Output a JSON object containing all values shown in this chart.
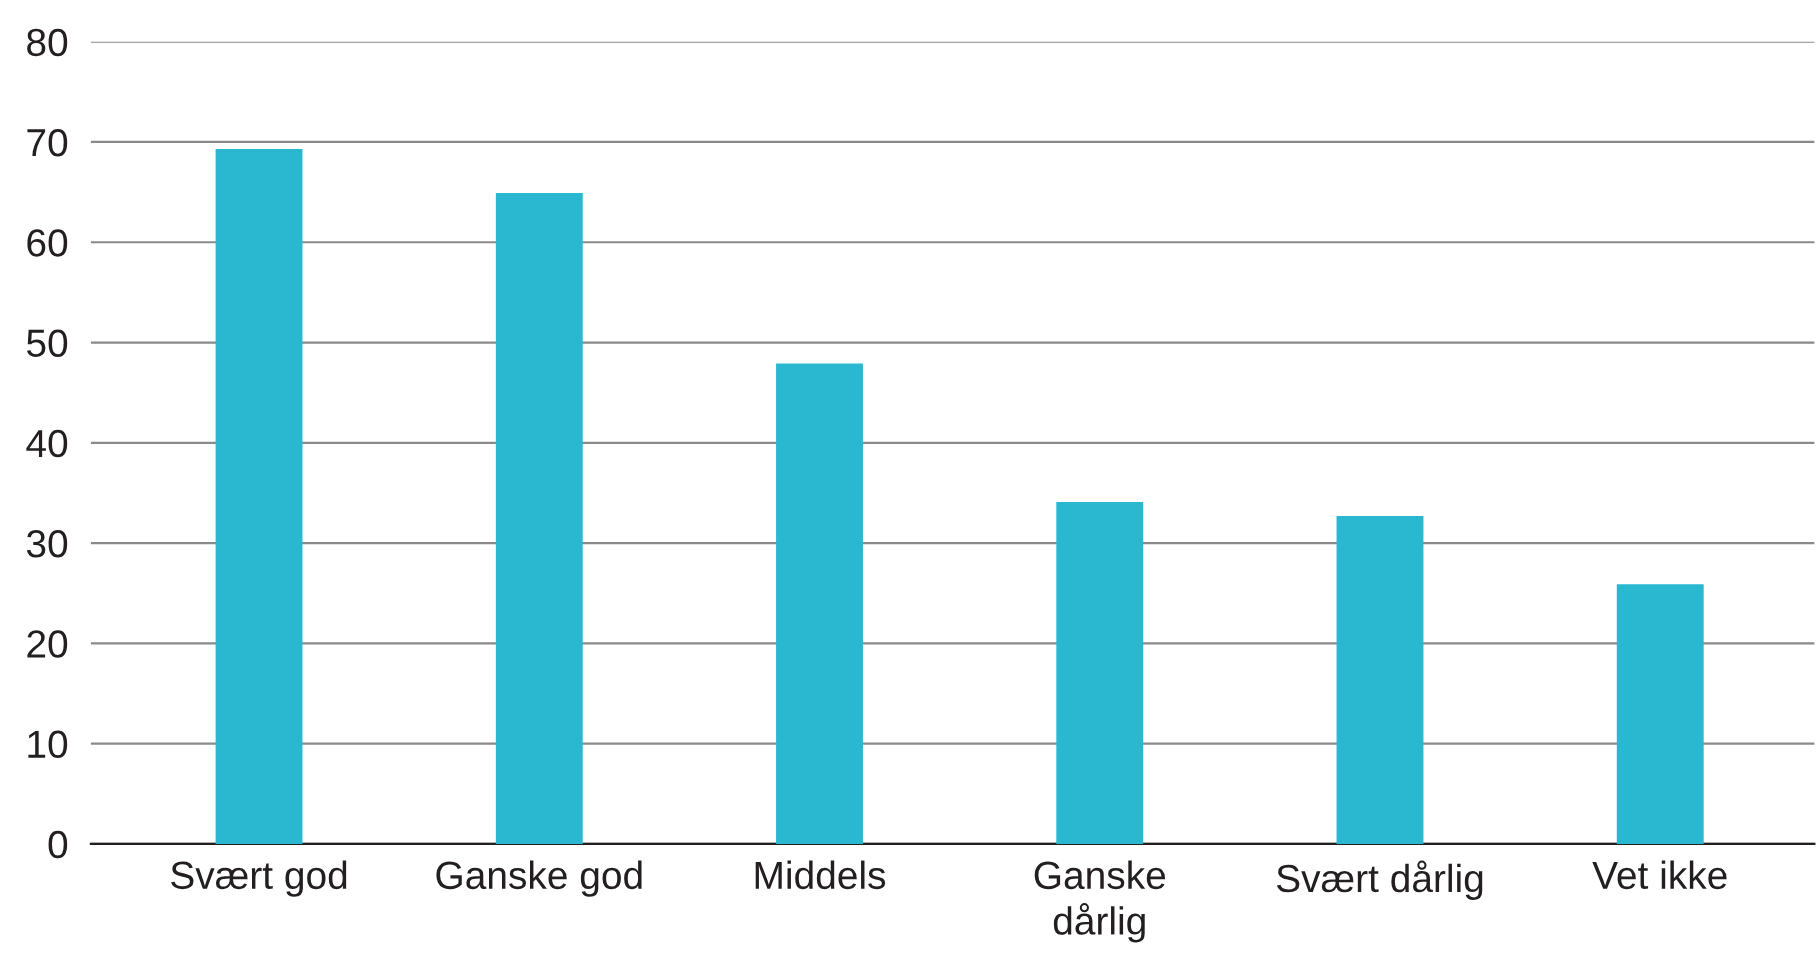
{
  "chart_data": {
    "type": "bar",
    "categories": [
      "Svært god",
      "Ganske god",
      "Middels",
      "Ganske\ndårlig",
      "Svært dårlig",
      "Vet ikke"
    ],
    "values": [
      69.3,
      64.9,
      47.9,
      34.1,
      32.7,
      25.9
    ],
    "color": "#29b8cf",
    "ylim": [
      0,
      80
    ],
    "yticks": [
      0,
      10,
      20,
      30,
      40,
      50,
      60,
      70,
      80
    ],
    "grid": "y"
  }
}
